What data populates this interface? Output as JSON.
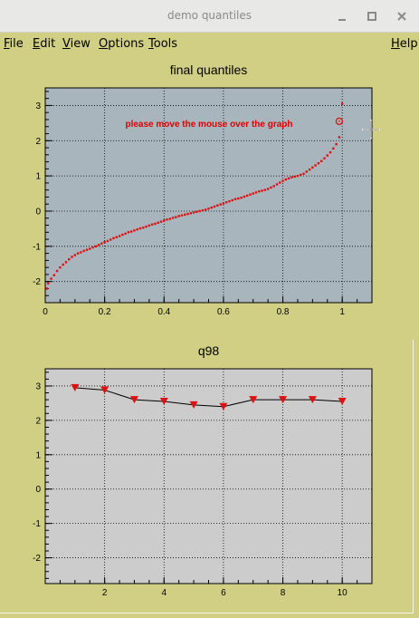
{
  "window": {
    "title": "demo quantiles"
  },
  "menu": [
    {
      "label": "File",
      "key": "F",
      "rest": "ile"
    },
    {
      "label": "Edit",
      "key": "E",
      "rest": "dit"
    },
    {
      "label": "View",
      "key": "V",
      "rest": "iew"
    },
    {
      "label": "Options",
      "key": "O",
      "rest": "ptions"
    },
    {
      "label": "Tools",
      "key": "T",
      "rest": "ools"
    },
    {
      "label": "Help",
      "key": "H",
      "rest": "elp"
    }
  ],
  "colors": {
    "canvas_bg": "#d0cf83",
    "top_frame": "#a9b5bd",
    "bottom_frame": "#cccccc",
    "marker": "#dd1111",
    "annotation": "#dd0000"
  },
  "icons": [
    "minimize-icon",
    "maximize-icon",
    "close-icon"
  ],
  "chart_data": [
    {
      "type": "scatter",
      "title": "final quantiles",
      "annotation": "please move the mouse over the graph",
      "xlim": [
        0,
        1.1
      ],
      "ylim": [
        -2.6,
        3.5
      ],
      "xticks": [
        "0",
        "0.2",
        "0.4",
        "0.6",
        "0.8",
        "1"
      ],
      "yticks": [
        "-2",
        "-1",
        "0",
        "1",
        "2",
        "3"
      ],
      "grid": true,
      "marker": "dot",
      "points": [
        [
          0.005,
          -2.2
        ],
        [
          0.01,
          -2.05
        ],
        [
          0.02,
          -1.92
        ],
        [
          0.03,
          -1.82
        ],
        [
          0.04,
          -1.7
        ],
        [
          0.05,
          -1.6
        ],
        [
          0.06,
          -1.52
        ],
        [
          0.07,
          -1.45
        ],
        [
          0.08,
          -1.37
        ],
        [
          0.09,
          -1.3
        ],
        [
          0.1,
          -1.25
        ],
        [
          0.11,
          -1.2
        ],
        [
          0.12,
          -1.17
        ],
        [
          0.13,
          -1.13
        ],
        [
          0.14,
          -1.1
        ],
        [
          0.15,
          -1.07
        ],
        [
          0.16,
          -1.03
        ],
        [
          0.17,
          -1.0
        ],
        [
          0.18,
          -0.96
        ],
        [
          0.19,
          -0.92
        ],
        [
          0.2,
          -0.88
        ],
        [
          0.21,
          -0.85
        ],
        [
          0.22,
          -0.81
        ],
        [
          0.23,
          -0.77
        ],
        [
          0.24,
          -0.74
        ],
        [
          0.25,
          -0.71
        ],
        [
          0.26,
          -0.67
        ],
        [
          0.27,
          -0.64
        ],
        [
          0.28,
          -0.6
        ],
        [
          0.29,
          -0.58
        ],
        [
          0.3,
          -0.55
        ],
        [
          0.31,
          -0.52
        ],
        [
          0.32,
          -0.49
        ],
        [
          0.33,
          -0.47
        ],
        [
          0.34,
          -0.44
        ],
        [
          0.35,
          -0.41
        ],
        [
          0.36,
          -0.38
        ],
        [
          0.37,
          -0.36
        ],
        [
          0.38,
          -0.33
        ],
        [
          0.39,
          -0.3
        ],
        [
          0.4,
          -0.27
        ],
        [
          0.41,
          -0.24
        ],
        [
          0.42,
          -0.22
        ],
        [
          0.43,
          -0.19
        ],
        [
          0.44,
          -0.17
        ],
        [
          0.45,
          -0.14
        ],
        [
          0.46,
          -0.12
        ],
        [
          0.47,
          -0.1
        ],
        [
          0.48,
          -0.08
        ],
        [
          0.49,
          -0.06
        ],
        [
          0.5,
          -0.04
        ],
        [
          0.51,
          -0.02
        ],
        [
          0.52,
          0.0
        ],
        [
          0.53,
          0.02
        ],
        [
          0.54,
          0.04
        ],
        [
          0.55,
          0.07
        ],
        [
          0.56,
          0.1
        ],
        [
          0.57,
          0.13
        ],
        [
          0.58,
          0.16
        ],
        [
          0.59,
          0.19
        ],
        [
          0.6,
          0.22
        ],
        [
          0.61,
          0.25
        ],
        [
          0.62,
          0.28
        ],
        [
          0.63,
          0.31
        ],
        [
          0.64,
          0.34
        ],
        [
          0.65,
          0.36
        ],
        [
          0.66,
          0.38
        ],
        [
          0.67,
          0.41
        ],
        [
          0.68,
          0.44
        ],
        [
          0.69,
          0.47
        ],
        [
          0.7,
          0.5
        ],
        [
          0.71,
          0.53
        ],
        [
          0.72,
          0.56
        ],
        [
          0.73,
          0.58
        ],
        [
          0.74,
          0.6
        ],
        [
          0.75,
          0.63
        ],
        [
          0.76,
          0.67
        ],
        [
          0.77,
          0.71
        ],
        [
          0.78,
          0.76
        ],
        [
          0.79,
          0.81
        ],
        [
          0.8,
          0.86
        ],
        [
          0.81,
          0.9
        ],
        [
          0.82,
          0.93
        ],
        [
          0.83,
          0.96
        ],
        [
          0.84,
          0.98
        ],
        [
          0.85,
          1.0
        ],
        [
          0.86,
          1.03
        ],
        [
          0.87,
          1.06
        ],
        [
          0.88,
          1.12
        ],
        [
          0.89,
          1.18
        ],
        [
          0.9,
          1.24
        ],
        [
          0.91,
          1.3
        ],
        [
          0.92,
          1.36
        ],
        [
          0.93,
          1.42
        ],
        [
          0.94,
          1.5
        ],
        [
          0.95,
          1.58
        ],
        [
          0.96,
          1.67
        ],
        [
          0.97,
          1.78
        ],
        [
          0.98,
          1.9
        ],
        [
          0.99,
          2.1
        ],
        [
          1.0,
          3.05
        ]
      ],
      "highlight": [
        0.99,
        2.55
      ]
    },
    {
      "type": "line",
      "title": "q98",
      "xlim": [
        0,
        11
      ],
      "ylim": [
        -2.75,
        3.5
      ],
      "xticks": [
        "2",
        "4",
        "6",
        "8",
        "10"
      ],
      "yticks": [
        "-2",
        "-1",
        "0",
        "1",
        "2",
        "3"
      ],
      "grid": true,
      "marker": "triangle-down",
      "x": [
        1,
        2,
        3,
        4,
        5,
        6,
        7,
        8,
        9,
        10
      ],
      "values": [
        2.95,
        2.88,
        2.6,
        2.55,
        2.45,
        2.4,
        2.6,
        2.6,
        2.6,
        2.55
      ]
    }
  ]
}
